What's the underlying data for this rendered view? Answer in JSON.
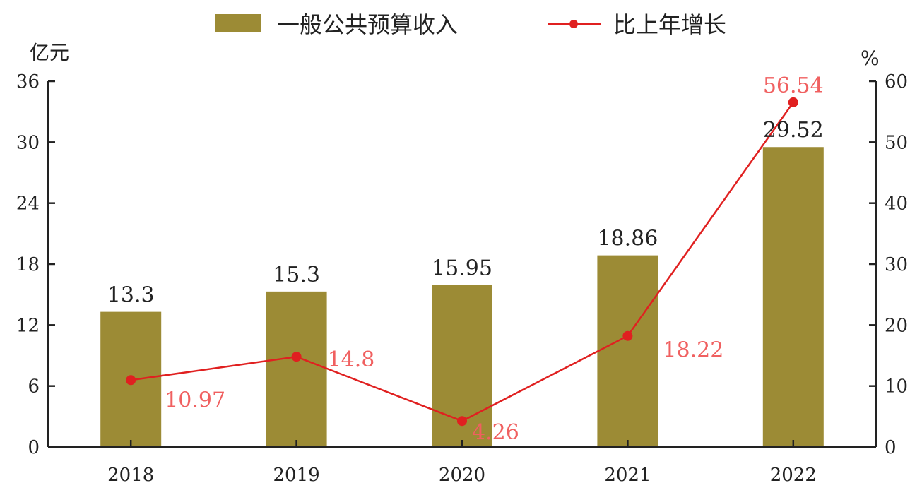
{
  "chart_data": {
    "type": "bar",
    "categories": [
      "2018",
      "2019",
      "2020",
      "2021",
      "2022"
    ],
    "series": [
      {
        "name": "一般公共预算收入",
        "type": "bar",
        "axis": "left",
        "values": [
          13.3,
          15.3,
          15.95,
          18.86,
          29.52
        ],
        "labels": [
          "13.3",
          "15.3",
          "15.95",
          "18.86",
          "29.52"
        ],
        "color": "#9c8b35"
      },
      {
        "name": "比上年增长",
        "type": "line",
        "axis": "right",
        "values": [
          10.97,
          14.8,
          4.26,
          18.22,
          56.54
        ],
        "labels": [
          "10.97",
          "14.8",
          "4.26",
          "18.22",
          "56.54"
        ],
        "color": "#e02020"
      }
    ],
    "y_left": {
      "unit": "亿元",
      "ylim": [
        0,
        36
      ],
      "ticks": [
        "0",
        "6",
        "12",
        "18",
        "24",
        "30",
        "36"
      ]
    },
    "y_right": {
      "unit": "%",
      "ylim": [
        0,
        60
      ],
      "ticks": [
        "0",
        "10",
        "20",
        "30",
        "40",
        "50",
        "60"
      ]
    },
    "legend_position": "top-center",
    "grid": false,
    "label_color": "#f06060",
    "axis_color": "#222222"
  }
}
